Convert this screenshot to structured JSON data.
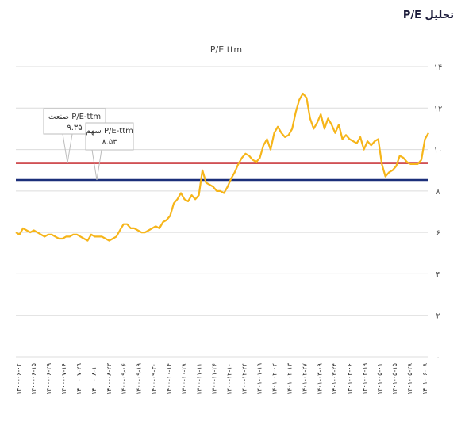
{
  "page": {
    "title": "تحلیل P/E"
  },
  "colors": {
    "series": "#f6b51a",
    "industry_line": "#c0161b",
    "stock_line": "#1b2f7a",
    "grid": "#dcdcdc",
    "callout_border": "#bdbdbd"
  },
  "callouts": [
    {
      "label": "صنعت P/E-ttm",
      "value": "۹.۳۵",
      "y": 9.35
    },
    {
      "label": "سهم P/E-ttm",
      "value": "۸.۵۳",
      "y": 8.53
    }
  ],
  "chart_data": {
    "type": "line",
    "title": "P/E ttm",
    "xlabel": "",
    "ylabel": "",
    "ylim": [
      0,
      14
    ],
    "y_ticks": [
      0,
      2,
      4,
      6,
      8,
      10,
      12,
      14
    ],
    "y_tick_labels": [
      "۰",
      "۲",
      "۴",
      "۶",
      "۸",
      "۱۰",
      "۱۲",
      "۱۴"
    ],
    "y_axis_side": "right",
    "grid": "horizontal",
    "legend": "none",
    "x_tick_labels": [
      "۱۴۰۰-۰۶-۰۲",
      "۱۴۰۰-۰۶-۱۵",
      "۱۴۰۰-۰۶-۲۹",
      "۱۴۰۰-۰۷-۱۶",
      "۱۴۰۰-۰۷-۲۹",
      "۱۴۰۰-۰۸-۱۰",
      "۱۴۰۰-۰۸-۲۳",
      "۱۴۰۰-۰۹-۰۶",
      "۱۴۰۰-۰۹-۱۹",
      "۱۴۰۰-۰۹-۳۰",
      "۱۴۰۰-۱۰-۱۴",
      "۱۴۰۰-۱۰-۲۸",
      "۱۴۰۰-۱۱-۱۱",
      "۱۴۰۰-۱۱-۲۶",
      "۱۴۰۰-۱۲-۱۰",
      "۱۴۰۰-۱۲-۲۴",
      "۱۴۰۱-۰۱-۱۹",
      "۱۴۰۱-۰۲-۰۲",
      "۱۴۰۱-۰۲-۱۳",
      "۱۴۰۱-۰۲-۲۷",
      "۱۴۰۱-۰۳-۰۹",
      "۱۴۰۱-۰۳-۲۴",
      "۱۴۰۱-۰۴-۰۶",
      "۱۴۰۱-۰۴-۱۹",
      "۱۴۰۱-۰۵-۰۱",
      "۱۴۰۱-۰۵-۱۵",
      "۱۴۰۱-۰۵-۲۸",
      "۱۴۰۱-۰۶-۰۸"
    ],
    "reference_lines": [
      {
        "name": "صنعت",
        "value": 9.35
      },
      {
        "name": "سهم",
        "value": 8.53
      }
    ],
    "series": [
      {
        "values": [
          6.0,
          5.9,
          6.2,
          6.1,
          6.0,
          6.1,
          6.0,
          5.9,
          5.8,
          5.9,
          5.9,
          5.8,
          5.7,
          5.7,
          5.8,
          5.8,
          5.9,
          5.9,
          5.8,
          5.7,
          5.6,
          5.9,
          5.8,
          5.8,
          5.8,
          5.7,
          5.6,
          5.7,
          5.8,
          6.1,
          6.4,
          6.4,
          6.2,
          6.2,
          6.1,
          6.0,
          6.0,
          6.1,
          6.2,
          6.3,
          6.2,
          6.5,
          6.6,
          6.8,
          7.4,
          7.6,
          7.9,
          7.6,
          7.5,
          7.8,
          7.6,
          7.8,
          9.0,
          8.4,
          8.3,
          8.2,
          8.0,
          8.0,
          7.9,
          8.2,
          8.6,
          8.9,
          9.3,
          9.6,
          9.8,
          9.7,
          9.5,
          9.4,
          9.6,
          10.2,
          10.5,
          10.0,
          10.8,
          11.1,
          10.8,
          10.6,
          10.7,
          11.0,
          11.8,
          12.4,
          12.7,
          12.5,
          11.5,
          11.0,
          11.3,
          11.7,
          11.0,
          11.5,
          11.2,
          10.8,
          11.2,
          10.5,
          10.7,
          10.5,
          10.4,
          10.3,
          10.6,
          10.0,
          10.4,
          10.2,
          10.4,
          10.5,
          9.3,
          8.7,
          8.9,
          9.0,
          9.2,
          9.7,
          9.6,
          9.4,
          9.3,
          9.3,
          9.3,
          9.5,
          10.5,
          10.8
        ]
      }
    ]
  }
}
